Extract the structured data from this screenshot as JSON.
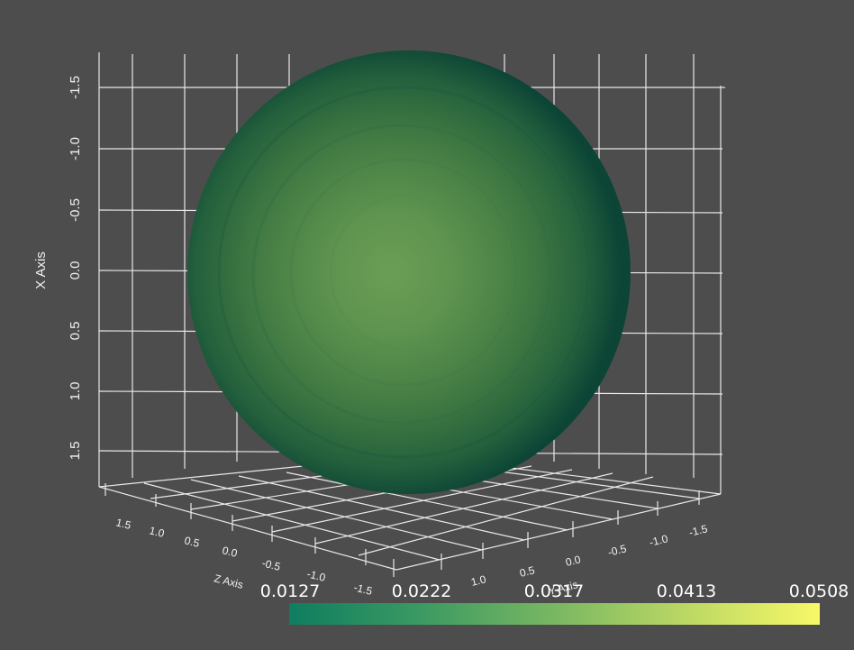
{
  "scene": {
    "background": "#4d4d4d",
    "grid_color": "#e8e8e8",
    "x_axis": {
      "title": "X Axis",
      "ticks": [
        "-1.5",
        "-1.0",
        "-0.5",
        "0.0",
        "0.5",
        "1.0",
        "1.5"
      ]
    },
    "y_axis": {
      "title": "Y Axis",
      "ticks": [
        "-1.5",
        "-1.0",
        "-0.5",
        "0.0",
        "0.5",
        "1.0",
        "1.5"
      ]
    },
    "z_axis": {
      "title": "Z Axis",
      "ticks": [
        "1.5",
        "1.0",
        "0.5",
        "0.0",
        "-0.5",
        "-1.0",
        "-1.5"
      ]
    },
    "sphere": {
      "edge_color": "#0d4a3a",
      "center_color": "#6b9e55"
    }
  },
  "scalar_bar": {
    "labels": [
      "0.0127",
      "0.0222",
      "0.0317",
      "0.0413",
      "0.0508"
    ],
    "colors": [
      "#0f7d60",
      "#3c9a62",
      "#79b762",
      "#bcd864",
      "#f8f868"
    ]
  }
}
